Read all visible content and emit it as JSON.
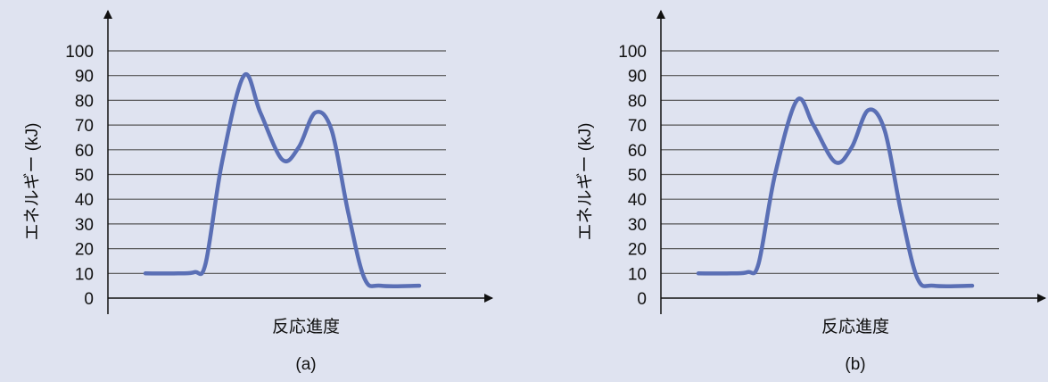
{
  "chart_data": [
    {
      "type": "line",
      "panel_label": "(a)",
      "xlabel": "反応進度",
      "ylabel": "エネルギー (kJ)",
      "ylim": [
        0,
        100
      ],
      "yticks": [
        0,
        10,
        20,
        30,
        40,
        50,
        60,
        70,
        80,
        90,
        100
      ],
      "grid": true,
      "colors": {
        "curve": "#5a6fb5",
        "grid": "#555555",
        "axis": "#111111"
      },
      "series": [
        {
          "points": [
            [
              0,
              10
            ],
            [
              0.12,
              10
            ],
            [
              0.18,
              10.5
            ],
            [
              0.22,
              14
            ],
            [
              0.28,
              55
            ],
            [
              0.36,
              90
            ],
            [
              0.42,
              75
            ],
            [
              0.5,
              56
            ],
            [
              0.56,
              61
            ],
            [
              0.62,
              75
            ],
            [
              0.68,
              68
            ],
            [
              0.74,
              35
            ],
            [
              0.8,
              8
            ],
            [
              0.86,
              5
            ],
            [
              1.0,
              5
            ]
          ]
        }
      ]
    },
    {
      "type": "line",
      "panel_label": "(b)",
      "xlabel": "反応進度",
      "ylabel": "エネルギー (kJ)",
      "ylim": [
        0,
        100
      ],
      "yticks": [
        0,
        10,
        20,
        30,
        40,
        50,
        60,
        70,
        80,
        90,
        100
      ],
      "grid": true,
      "colors": {
        "curve": "#5a6fb5",
        "grid": "#555555",
        "axis": "#111111"
      },
      "series": [
        {
          "points": [
            [
              0,
              10
            ],
            [
              0.12,
              10
            ],
            [
              0.18,
              10.5
            ],
            [
              0.22,
              14
            ],
            [
              0.28,
              50
            ],
            [
              0.36,
              80
            ],
            [
              0.42,
              70
            ],
            [
              0.5,
              55
            ],
            [
              0.56,
              61
            ],
            [
              0.62,
              76
            ],
            [
              0.68,
              68
            ],
            [
              0.74,
              35
            ],
            [
              0.8,
              8
            ],
            [
              0.86,
              5
            ],
            [
              1.0,
              5
            ]
          ]
        }
      ]
    }
  ]
}
